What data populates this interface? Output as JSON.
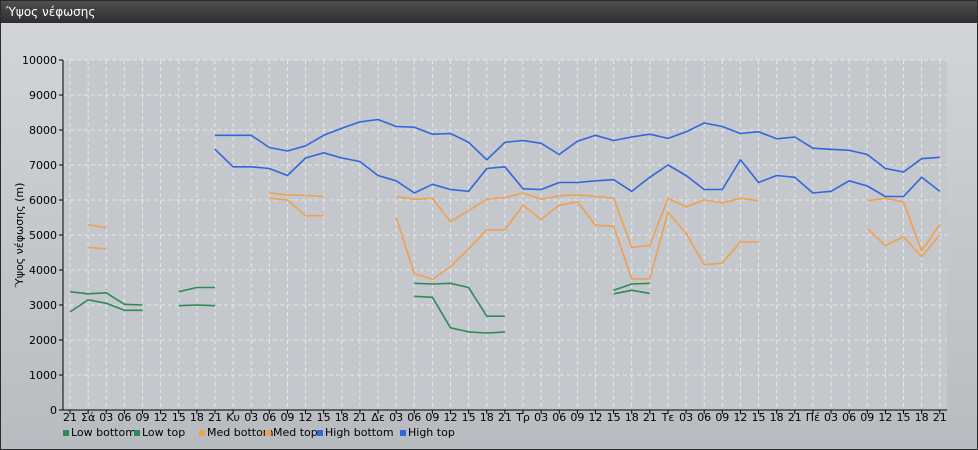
{
  "window": {
    "title": "Ύψος νέφωσης"
  },
  "chart_data": {
    "type": "line",
    "title": "",
    "ylabel": "Ύψος νέφωσης (m)",
    "xlabel": "",
    "ylim": [
      0,
      10000
    ],
    "y_ticks": [
      0,
      1000,
      2000,
      3000,
      4000,
      5000,
      6000,
      7000,
      8000,
      9000,
      10000
    ],
    "grid": true,
    "legend_position": "bottom-left",
    "categories": [
      "21",
      "Σά",
      "03",
      "06",
      "09",
      "12",
      "15",
      "18",
      "21",
      "Κυ",
      "03",
      "06",
      "09",
      "12",
      "15",
      "18",
      "21",
      "Δε",
      "03",
      "06",
      "09",
      "12",
      "15",
      "18",
      "21",
      "Τρ",
      "03",
      "06",
      "09",
      "12",
      "15",
      "18",
      "21",
      "Τε",
      "03",
      "06",
      "09",
      "12",
      "15",
      "18",
      "21",
      "Πέ",
      "03",
      "06",
      "09",
      "12",
      "15",
      "18",
      "21"
    ],
    "series": [
      {
        "name": "Low bottom",
        "color": "#2e8b57",
        "values": [
          2800,
          3150,
          3050,
          2850,
          2850,
          null,
          2980,
          3000,
          2980,
          null,
          null,
          null,
          null,
          null,
          null,
          null,
          null,
          null,
          null,
          3250,
          3220,
          2350,
          2230,
          2200,
          2230,
          null,
          null,
          null,
          null,
          null,
          3320,
          3420,
          3330,
          null,
          null,
          null,
          null,
          null,
          null,
          null,
          null,
          null,
          null,
          null,
          null,
          null,
          null,
          null,
          null
        ]
      },
      {
        "name": "Low top",
        "color": "#2e8b57",
        "values": [
          3380,
          3320,
          3350,
          3020,
          3000,
          null,
          3380,
          3500,
          3500,
          null,
          null,
          null,
          null,
          null,
          null,
          null,
          null,
          null,
          null,
          3620,
          3600,
          3620,
          3500,
          2680,
          2680,
          null,
          null,
          null,
          null,
          null,
          3420,
          3600,
          3620,
          null,
          null,
          null,
          null,
          null,
          null,
          null,
          null,
          null,
          null,
          null,
          null,
          null,
          null,
          null,
          null
        ]
      },
      {
        "name": "Med bottom",
        "color": "#f0a050",
        "values": [
          null,
          4650,
          4600,
          null,
          null,
          null,
          null,
          null,
          null,
          null,
          null,
          6050,
          6000,
          5550,
          5550,
          null,
          null,
          null,
          5500,
          3900,
          3730,
          4100,
          4600,
          5150,
          5150,
          5850,
          5450,
          5850,
          5950,
          5280,
          5250,
          3750,
          3750,
          5650,
          5050,
          4150,
          4200,
          4800,
          4800,
          null,
          null,
          null,
          null,
          null,
          5180,
          4700,
          4950,
          4380,
          5000
        ]
      },
      {
        "name": "Med top",
        "color": "#f0a050",
        "values": [
          null,
          5300,
          5200,
          null,
          null,
          null,
          null,
          null,
          null,
          null,
          null,
          6200,
          6150,
          6130,
          6100,
          null,
          null,
          null,
          6100,
          6020,
          6050,
          5380,
          5700,
          6020,
          6070,
          6200,
          6020,
          6120,
          6150,
          6100,
          6050,
          4650,
          4700,
          6050,
          5800,
          6000,
          5920,
          6050,
          5980,
          null,
          null,
          null,
          null,
          null,
          5980,
          6050,
          5950,
          4550,
          5300
        ]
      },
      {
        "name": "High bottom",
        "color": "#3366dd",
        "values": [
          null,
          null,
          null,
          null,
          null,
          null,
          null,
          null,
          7450,
          6950,
          6950,
          6900,
          6700,
          7200,
          7350,
          7200,
          7100,
          6700,
          6550,
          6200,
          6450,
          6300,
          6250,
          6900,
          6950,
          6320,
          6300,
          6500,
          6500,
          6550,
          6580,
          6250,
          6650,
          7000,
          6700,
          6300,
          6300,
          7150,
          6500,
          6700,
          6650,
          6200,
          6250,
          6550,
          6400,
          6100,
          6100,
          6650,
          6250
        ]
      },
      {
        "name": "High top",
        "color": "#3366dd",
        "values": [
          null,
          null,
          null,
          null,
          null,
          null,
          null,
          null,
          7850,
          7850,
          7850,
          7500,
          7400,
          7550,
          7850,
          8050,
          8230,
          8300,
          8100,
          8080,
          7880,
          7900,
          7650,
          7150,
          7650,
          7700,
          7620,
          7300,
          7680,
          7850,
          7700,
          7800,
          7880,
          7760,
          7950,
          8200,
          8100,
          7900,
          7950,
          7750,
          7800,
          7480,
          7450,
          7420,
          7300,
          6900,
          6800,
          7180,
          7220
        ]
      }
    ]
  }
}
